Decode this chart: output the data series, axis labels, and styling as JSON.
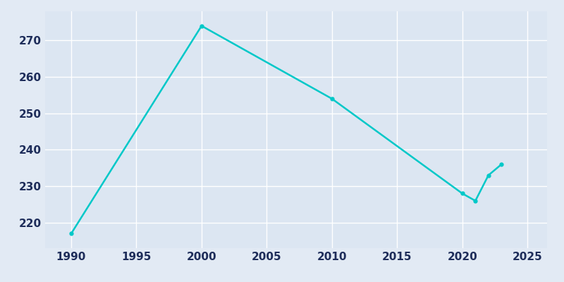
{
  "years": [
    1990,
    2000,
    2010,
    2020,
    2021,
    2022,
    2023
  ],
  "population": [
    217,
    274,
    254,
    228,
    226,
    233,
    236
  ],
  "line_color": "#00c8c8",
  "marker": "o",
  "marker_size": 3.5,
  "line_width": 1.8,
  "bg_color": "#e2eaf4",
  "plot_bg_color": "#dce6f2",
  "grid_color": "#ffffff",
  "xlim": [
    1988,
    2026.5
  ],
  "ylim": [
    213,
    278
  ],
  "xticks": [
    1990,
    1995,
    2000,
    2005,
    2010,
    2015,
    2020,
    2025
  ],
  "yticks": [
    220,
    230,
    240,
    250,
    260,
    270
  ],
  "tick_color": "#1e2d5a",
  "tick_fontsize": 11
}
